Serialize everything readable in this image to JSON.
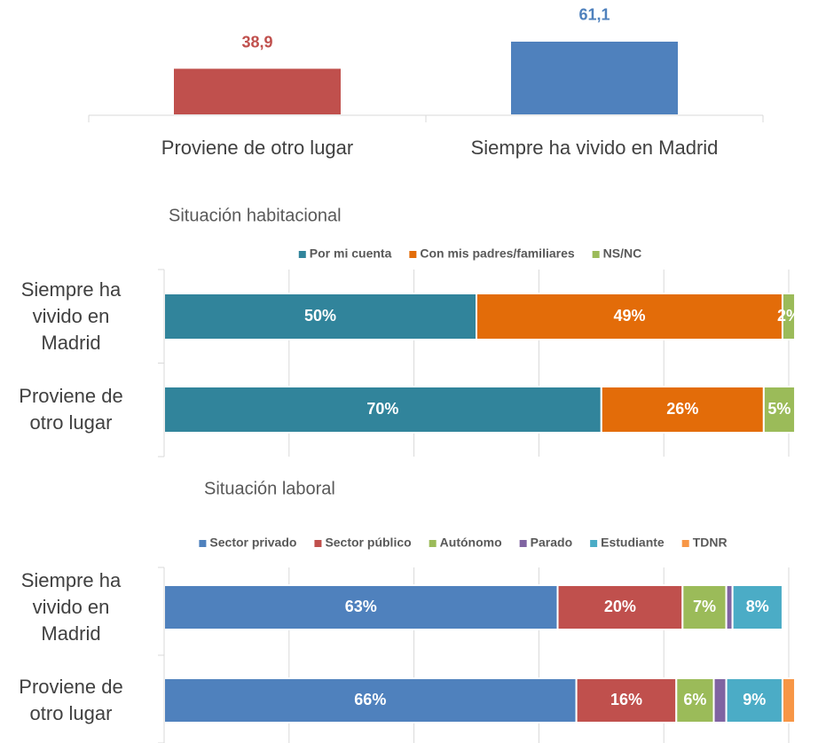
{
  "chart_data": [
    {
      "type": "bar",
      "categories": [
        "Proviene de otro lugar",
        "Siempre ha vivido en Madrid"
      ],
      "values": [
        38.9,
        61.1
      ],
      "value_labels": [
        "38,9",
        "61,1"
      ],
      "colors": [
        "#c0504d",
        "#4f81bd"
      ],
      "ylim": [
        0,
        70
      ]
    },
    {
      "type": "stacked_barh",
      "title": "Situación habitacional",
      "categories": [
        "Siempre ha vivido en Madrid",
        "Proviene de otro lugar"
      ],
      "series": [
        {
          "name": "Por mi cuenta",
          "color": "#31849b",
          "values": [
            50,
            70
          ],
          "value_labels": [
            "50%",
            "70%"
          ]
        },
        {
          "name": "Con mis padres/familiares",
          "color": "#e36c09",
          "values": [
            49,
            26
          ],
          "value_labels": [
            "49%",
            "26%"
          ]
        },
        {
          "name": "NS/NC",
          "color": "#9bbb59",
          "values": [
            2,
            5
          ],
          "value_labels": [
            "2%",
            "5%"
          ]
        }
      ],
      "xlim": [
        0,
        100
      ],
      "xticks": [
        0,
        20,
        40,
        60,
        80,
        100
      ],
      "grid": true
    },
    {
      "type": "stacked_barh",
      "title": "Situación laboral",
      "categories": [
        "Siempre ha vivido en Madrid",
        "Proviene de otro lugar"
      ],
      "series": [
        {
          "name": "Sector privado",
          "color": "#4f81bd",
          "values": [
            63,
            66
          ],
          "value_labels": [
            "63%",
            "66%"
          ]
        },
        {
          "name": "Sector público",
          "color": "#c0504d",
          "values": [
            20,
            16
          ],
          "value_labels": [
            "20%",
            "16%"
          ]
        },
        {
          "name": "Autónomo",
          "color": "#9bbb59",
          "values": [
            7,
            6
          ],
          "value_labels": [
            "7%",
            "6%"
          ]
        },
        {
          "name": "Parado",
          "color": "#8064a2",
          "values": [
            1,
            2
          ],
          "value_labels": [
            null,
            null
          ]
        },
        {
          "name": "Estudiante",
          "color": "#4bacc6",
          "values": [
            8,
            9
          ],
          "value_labels": [
            "8%",
            "9%"
          ]
        },
        {
          "name": "TDNR",
          "color": "#f79646",
          "values": [
            0,
            2
          ],
          "value_labels": [
            null,
            null
          ]
        }
      ],
      "xlim": [
        0,
        100
      ],
      "xticks": [
        0,
        20,
        40,
        60,
        80,
        100
      ],
      "grid": true
    }
  ]
}
